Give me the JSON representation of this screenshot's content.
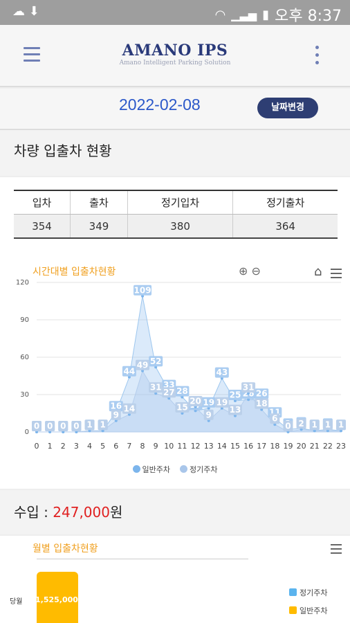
{
  "status_bar": {
    "period": "오후",
    "time": "8:37"
  },
  "app": {
    "logo_title": "AMANO IPS",
    "logo_subtitle": "Amano Intelligent Parking Solution"
  },
  "date_bar": {
    "date": "2022-02-08",
    "change_button": "날짜변경"
  },
  "vehicle_section": {
    "title": "차량 입출차 현황",
    "headers": [
      "입차",
      "출차",
      "정기입차",
      "정기출차"
    ],
    "values": [
      "354",
      "349",
      "380",
      "364"
    ]
  },
  "hourly_chart": {
    "title": "시간대별 입출차현황",
    "legend": [
      "일반주차",
      "정기주차"
    ]
  },
  "income": {
    "label": "수입 : ",
    "amount": "247,000",
    "unit": "원"
  },
  "monthly_chart": {
    "title": "월별 입출차현황",
    "category": "당월",
    "bar_label": "1,525,000",
    "legend": [
      "정기주차",
      "일반주차"
    ]
  },
  "colors": {
    "series_general": "#7cb5ec",
    "series_regular": "#a9c6ea",
    "accent": "#f0a020",
    "income": "#e02020"
  },
  "chart_data": {
    "type": "area",
    "title": "시간대별 입출차현황",
    "x": [
      0,
      1,
      2,
      3,
      4,
      5,
      6,
      7,
      8,
      9,
      10,
      11,
      12,
      13,
      14,
      15,
      16,
      17,
      18,
      19,
      20,
      21,
      22,
      23
    ],
    "ylim": [
      0,
      120
    ],
    "yticks": [
      0,
      30,
      60,
      90,
      120
    ],
    "grid": true,
    "legend_position": "bottom",
    "series": [
      {
        "name": "일반주차",
        "values": [
          0,
          0,
          0,
          0,
          1,
          1,
          16,
          44,
          109,
          52,
          33,
          28,
          17,
          19,
          43,
          25,
          26,
          26,
          11,
          2,
          3,
          1,
          2,
          1
        ]
      },
      {
        "name": "정기주차",
        "values": [
          0,
          0,
          0,
          0,
          1,
          1,
          9,
          14,
          49,
          31,
          27,
          15,
          20,
          9,
          19,
          13,
          31,
          18,
          6,
          0,
          2,
          1,
          1,
          1
        ]
      }
    ]
  }
}
